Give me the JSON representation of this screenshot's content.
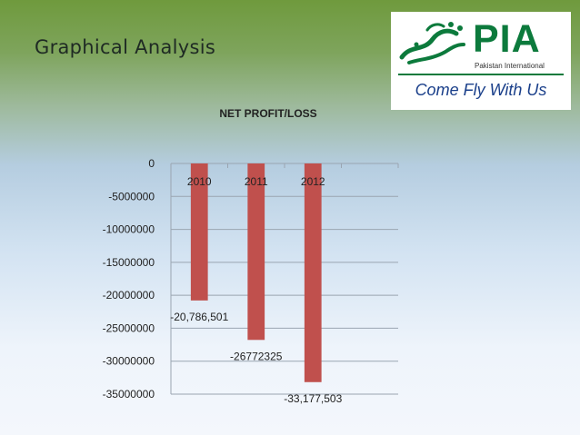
{
  "slide": {
    "title": "Graphical Analysis"
  },
  "logo": {
    "name": "PIA",
    "subtitle": "Pakistan International",
    "tagline": "Come Fly With Us",
    "colors": {
      "green": "#0c7a3c",
      "blue": "#1a3f8a"
    }
  },
  "chart_data": {
    "type": "bar",
    "title": "NET PROFIT/LOSS",
    "xlabel": "",
    "ylabel": "",
    "categories": [
      "2010",
      "2011",
      "2012"
    ],
    "values": [
      -20786501,
      -26772325,
      -33177503
    ],
    "data_labels": [
      "-20,786,501",
      "-26772325",
      "-33,177,503"
    ],
    "ylim": [
      -35000000,
      0
    ],
    "yticks": [
      0,
      -5000000,
      -10000000,
      -15000000,
      -20000000,
      -25000000,
      -30000000,
      -35000000
    ],
    "ytick_labels": [
      "0",
      "-5000000",
      "-10000000",
      "-15000000",
      "-20000000",
      "-25000000",
      "-30000000",
      "-35000000"
    ],
    "grid": true,
    "legend": "none",
    "bar_color": "#c0504d"
  }
}
